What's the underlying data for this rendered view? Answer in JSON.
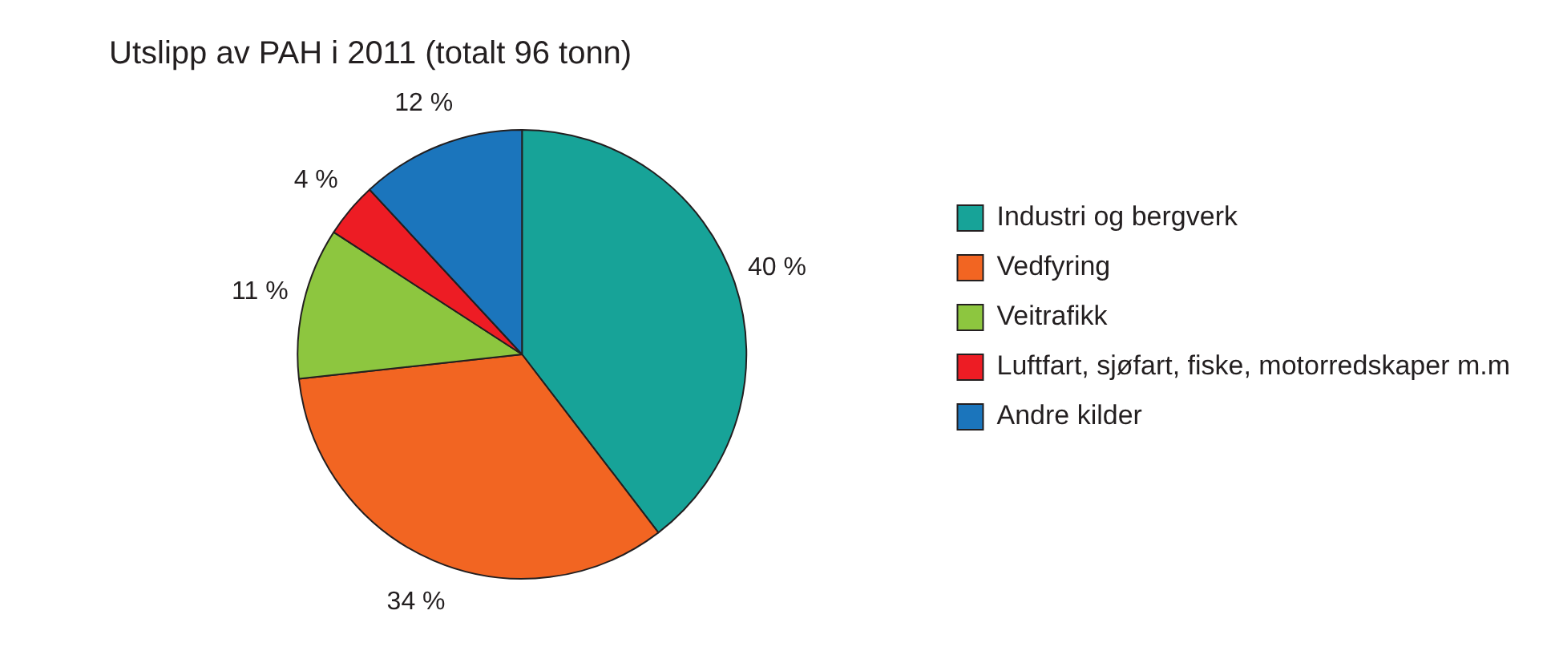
{
  "chart_data": {
    "type": "pie",
    "title": "Utslipp av PAH i 2011 (totalt 96 tonn)",
    "categories": [
      "Industri og bergverk",
      "Vedfyring",
      "Veitrafikk",
      "Luftfart, sjøfart, fiske, motorredskaper m.m",
      "Andre kilder"
    ],
    "values": [
      40,
      34,
      11,
      4,
      12
    ],
    "value_labels": [
      "40 %",
      "34 %",
      "11 %",
      "4 %",
      "12 %"
    ],
    "colors": [
      "#17a398",
      "#f26522",
      "#8dc63f",
      "#ed1c24",
      "#1b75bc"
    ],
    "legend": "right"
  }
}
